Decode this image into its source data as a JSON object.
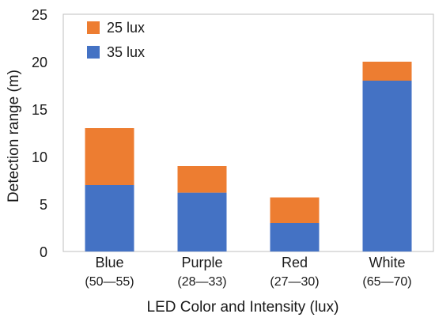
{
  "chart_data": {
    "type": "bar",
    "stacked": true,
    "categories": [
      "Blue",
      "Purple",
      "Red",
      "White"
    ],
    "category_ranges": [
      "(50—55)",
      "(28—33)",
      "(27—30)",
      "(65—70)"
    ],
    "series": [
      {
        "name": "35 lux",
        "values": [
          7,
          6.2,
          3,
          18
        ],
        "color": "#4472C4"
      },
      {
        "name": "25 lux",
        "values": [
          6,
          2.8,
          2.7,
          2
        ],
        "color": "#ED7D31"
      }
    ],
    "legend_order": [
      "25 lux",
      "35 lux"
    ],
    "legend_position": "top-left",
    "ylim": [
      0,
      25
    ],
    "yticks": [
      0,
      5,
      10,
      15,
      20,
      25
    ],
    "ylabel": "Detection range (m)",
    "xlabel": "LED Color and Intensity (lux)",
    "title": "",
    "grid": false,
    "colors": {
      "series_35": "#4472C4",
      "series_25": "#ED7D31",
      "frame": "#bfbfbf"
    }
  }
}
